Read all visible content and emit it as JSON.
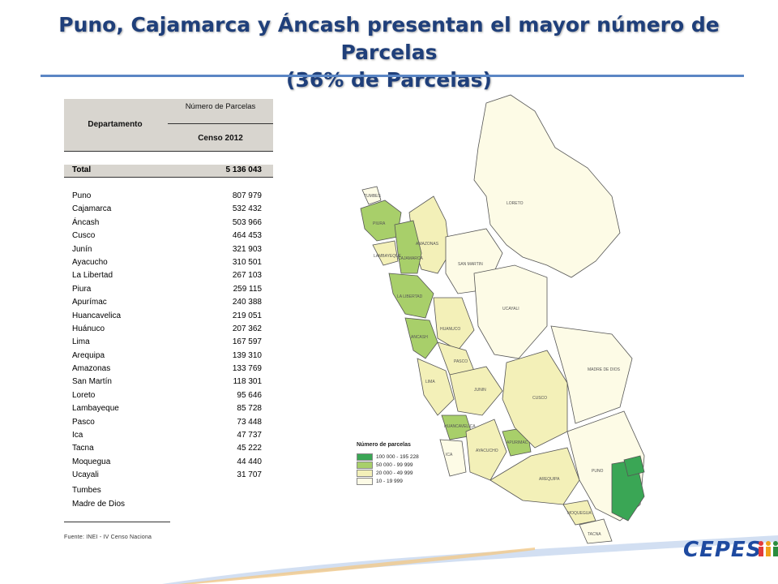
{
  "title": {
    "line1": "Puno, Cajamarca y Áncash presentan el mayor número de Parcelas",
    "line2": "(36% de Parcelas)"
  },
  "table": {
    "col_departamento": "Departamento",
    "col_numero": "Número de Parcelas",
    "col_censo": "Censo 2012",
    "total_label": "Total",
    "total_value": "5 136 043",
    "rows": [
      {
        "name": "Puno",
        "value": "807 979"
      },
      {
        "name": "Cajamarca",
        "value": "532 432"
      },
      {
        "name": "Áncash",
        "value": "503 966"
      },
      {
        "name": "Cusco",
        "value": "464 453"
      },
      {
        "name": "Junín",
        "value": "321 903"
      },
      {
        "name": "Ayacucho",
        "value": "310 501"
      },
      {
        "name": "La Libertad",
        "value": "267 103"
      },
      {
        "name": "Piura",
        "value": "259 115"
      },
      {
        "name": "Apurímac",
        "value": "240 388"
      },
      {
        "name": "Huancavelica",
        "value": "219 051"
      },
      {
        "name": "Huánuco",
        "value": "207 362"
      },
      {
        "name": "Lima",
        "value": "167 597"
      },
      {
        "name": "Arequipa",
        "value": "139 310"
      },
      {
        "name": "Amazonas",
        "value": "133 769"
      },
      {
        "name": "San Martín",
        "value": "118 301"
      },
      {
        "name": "Loreto",
        "value": "95 646"
      },
      {
        "name": "Lambayeque",
        "value": "85 728"
      },
      {
        "name": "Pasco",
        "value": "73 448"
      },
      {
        "name": "Ica",
        "value": "47 737"
      },
      {
        "name": "Tacna",
        "value": "45 222"
      },
      {
        "name": "Moquegua",
        "value": "44 440"
      },
      {
        "name": "Ucayali",
        "value": "31 707"
      }
    ],
    "extra_rows": [
      "Tumbes",
      "Madre de Dios"
    ],
    "source": "Fuente: INEI - IV Censo Naciona"
  },
  "map": {
    "labels": [
      "LORETO",
      "AMAZONAS",
      "LAMBAYEQUE",
      "CAJAMARCA",
      "SAN MARTIN",
      "LA LIBERTAD",
      "HUANUCO",
      "UCAYALI",
      "PASCO",
      "JUNIN",
      "LIMA",
      "HUANCAVELICA",
      "AYACUCHO",
      "CUSCO",
      "MADRE DE DIOS",
      "ICA",
      "AREQUIPA",
      "PUNO",
      "MOQUEGUA",
      "TACNA",
      "TUMBES",
      "PIURA",
      "ANCASH",
      "APURIMAC"
    ],
    "legend_title": "Número de parcelas",
    "legend": [
      {
        "label": "100 000 - 195 228",
        "color": "#3aa655"
      },
      {
        "label": "50 000 - 99 999",
        "color": "#a8cf6a"
      },
      {
        "label": "20 000 - 49 999",
        "color": "#f3f0b8"
      },
      {
        "label": "10 - 19 999",
        "color": "#fdfbe6"
      }
    ]
  },
  "logo": {
    "text": "CEPES"
  }
}
